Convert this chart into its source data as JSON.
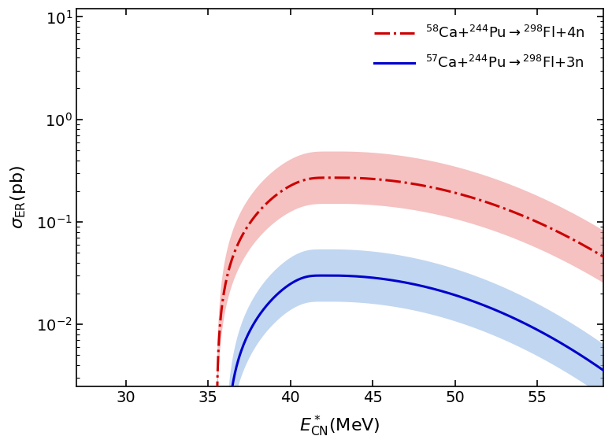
{
  "xlim": [
    27,
    59
  ],
  "xticks": [
    30,
    35,
    40,
    45,
    50,
    55
  ],
  "red_label": "$^{58}$Ca+$^{244}$Pu$\\rightarrow$$^{298}$Fl+4n",
  "blue_label": "$^{57}$Ca+$^{244}$Pu$\\rightarrow$$^{298}$Fl+3n",
  "red_color": "#cc0000",
  "blue_color": "#0000cc",
  "red_fill_color": "#f0a0a0",
  "blue_fill_color": "#a0c0e8",
  "background": "#ffffff",
  "ylim_bottom": 0.0025,
  "ylim_top": 12.0,
  "red_peak": 0.27,
  "red_peak_x": 43.0,
  "red_start_x": 35.5,
  "red_rise_rate": 1.2,
  "red_fall_sigma": 8.5,
  "blue_peak": 0.03,
  "blue_peak_x": 42.5,
  "blue_start_x": 36.0,
  "blue_rise_rate": 1.1,
  "blue_fall_sigma": 8.0,
  "red_band_factor": 1.8,
  "blue_band_factor": 1.8
}
